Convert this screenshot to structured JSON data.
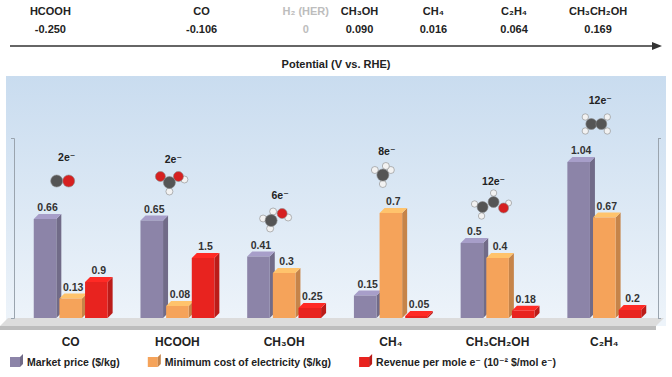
{
  "potential_scale": {
    "title": "Potential (V vs. RHE)",
    "items": [
      {
        "name": "HCOOH",
        "value": -0.25,
        "label": "-0.250"
      },
      {
        "name": "CO",
        "value": -0.106,
        "label": "-0.106"
      },
      {
        "name": "H₂ (HER)",
        "value": 0,
        "label": "0",
        "color": "#bdbdbd"
      },
      {
        "name": "CH₃OH",
        "value": 0.09,
        "label": "0.090"
      },
      {
        "name": "CH₄",
        "value": 0.016,
        "label": "0.016"
      },
      {
        "name": "C₂H₄",
        "value": 0.064,
        "label": "0.064"
      },
      {
        "name": "CH₃CH₂OH",
        "value": 0.169,
        "label": "0.169"
      }
    ]
  },
  "chart_data": {
    "type": "bar",
    "categories": [
      "CO",
      "HCOOH",
      "CH₃OH",
      "CH₄",
      "CH₃CH₂OH",
      "C₂H₄"
    ],
    "electron_labels": [
      "2e⁻",
      "2e⁻",
      "6e⁻",
      "8e⁻",
      "12e⁻",
      "12e⁻"
    ],
    "series": [
      {
        "name": "Market price ($/kg)",
        "color": "#8c84a8",
        "values": [
          0.66,
          0.65,
          0.41,
          0.15,
          0.5,
          1.04
        ]
      },
      {
        "name": "Minimum cost of electricity ($/kg)",
        "color": "#f5a35a",
        "values": [
          0.13,
          0.08,
          0.3,
          0.7,
          0.4,
          0.67
        ]
      },
      {
        "name": "Revenue per mole e⁻ (10⁻² $/mol e⁻)",
        "color": "#e8231f",
        "values": [
          0.9,
          1.5,
          0.25,
          0.05,
          0.18,
          0.2
        ],
        "axis": "y2"
      }
    ],
    "ylim": [
      0,
      1.2
    ],
    "yticks": [
      0,
      1.2
    ],
    "y2lim": [
      0,
      4.5
    ],
    "y2ticks": [
      0,
      4.5
    ],
    "data_labels": true,
    "tick_labels": false,
    "legend": "bottom"
  }
}
